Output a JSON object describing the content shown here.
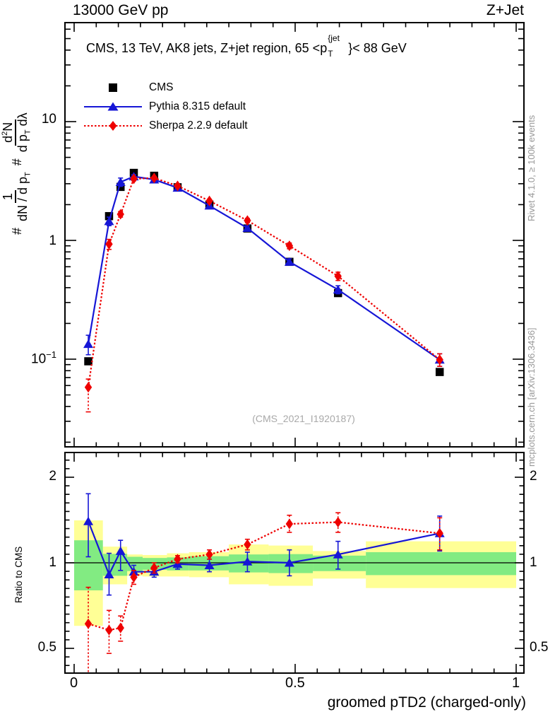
{
  "header": {
    "left": "13000 GeV pp",
    "right": "Z+Jet"
  },
  "panel_title": {
    "pre": "CMS, 13 TeV, AK8 jets, Z+jet region, 65 <p",
    "sup": "{jet",
    "sub": "T",
    "post": "}< 88 GeV"
  },
  "watermark": "(CMS_2021_I1920187)",
  "side_notes": {
    "top": "Rivet 4.1.0, ≥ 100k events",
    "bottom": "mcplots.cern.ch [arXiv:1306.3436]",
    "color": "#999999"
  },
  "ylabel_main": {
    "hash1": "#",
    "f1_num": "1",
    "f1_den": "dN / d p",
    "f1_den_sub": "T",
    "hash2": "#",
    "f2_num_a": "d",
    "f2_num_sup": "2",
    "f2_num_b": "N",
    "f2_den_a": "d p",
    "f2_den_sub": "T",
    "f2_den_b": " dλ"
  },
  "axes": {
    "x": {
      "title": "groomed pTD2 (charged-only)",
      "tick_labels": [
        "0",
        "0.5",
        "1"
      ]
    },
    "y_main": {
      "tick_top": "10",
      "tick_mid": "1",
      "tick_bot_base": "10",
      "tick_bot_sup": "−1"
    },
    "y_ratio": {
      "label": "Ratio to CMS",
      "tick_labels": [
        "2",
        "1",
        "0.5"
      ]
    }
  },
  "chart_data": {
    "type": "line",
    "title": "CMS, 13 TeV, AK8 jets, Z+jet region, 65 < pT{jet} < 88 GeV",
    "xlabel": "groomed pTD2 (charged-only)",
    "ylabel": "# 1/(dN/dpT) # d2N/(dpT dλ)",
    "x_range": [
      -0.021,
      1.018
    ],
    "y_scale": "log",
    "y_range_main": [
      0.018,
      68
    ],
    "x": [
      0.032,
      0.079,
      0.105,
      0.135,
      0.181,
      0.234,
      0.306,
      0.392,
      0.487,
      0.597,
      0.827
    ],
    "series": [
      {
        "name": "CMS",
        "color": "#000000",
        "marker": "square",
        "line": "none",
        "values": [
          0.096,
          1.6,
          2.82,
          3.7,
          3.5,
          2.8,
          2.0,
          1.26,
          0.66,
          0.36,
          0.078
        ],
        "err_lo": [
          0.004,
          0.04,
          0.06,
          0.07,
          0.06,
          0.05,
          0.04,
          0.03,
          0.02,
          0.012,
          0.004
        ],
        "err_hi": [
          0.004,
          0.04,
          0.06,
          0.07,
          0.06,
          0.05,
          0.04,
          0.03,
          0.02,
          0.012,
          0.004
        ]
      },
      {
        "name": "Pythia 8.315 default",
        "color": "#1616d6",
        "marker": "triangle",
        "line": "solid",
        "values": [
          0.134,
          1.45,
          3.1,
          3.45,
          3.25,
          2.77,
          1.96,
          1.27,
          0.66,
          0.385,
          0.099
        ],
        "err_lo": [
          0.025,
          0.12,
          0.25,
          0.12,
          0.1,
          0.08,
          0.07,
          0.06,
          0.04,
          0.03,
          0.012
        ],
        "err_hi": [
          0.025,
          0.12,
          0.25,
          0.12,
          0.1,
          0.08,
          0.07,
          0.06,
          0.04,
          0.03,
          0.012
        ]
      },
      {
        "name": "Sherpa 2.2.9 default",
        "color": "#ee0000",
        "marker": "diamond",
        "line": "dotted",
        "values": [
          0.058,
          0.93,
          1.66,
          3.3,
          3.35,
          2.88,
          2.15,
          1.47,
          0.9,
          0.5,
          0.099
        ],
        "err_lo": [
          0.022,
          0.09,
          0.09,
          0.12,
          0.1,
          0.08,
          0.07,
          0.06,
          0.05,
          0.04,
          0.012
        ],
        "err_hi": [
          0.01,
          0.09,
          0.09,
          0.12,
          0.1,
          0.08,
          0.07,
          0.06,
          0.05,
          0.04,
          0.012
        ]
      }
    ],
    "ratio": {
      "ylabel": "Ratio to CMS",
      "y_range": [
        0.41,
        2.44
      ],
      "reference_line": 1,
      "series": [
        {
          "name": "Pythia 8.315 default",
          "color": "#1616d6",
          "marker": "triangle",
          "line": "solid",
          "values": [
            1.4,
            0.91,
            1.1,
            0.93,
            0.93,
            0.99,
            0.98,
            1.01,
            1.0,
            1.07,
            1.27
          ],
          "err_lo": [
            0.35,
            0.14,
            0.16,
            0.05,
            0.04,
            0.04,
            0.05,
            0.08,
            0.1,
            0.12,
            0.17
          ],
          "err_hi": [
            0.35,
            0.17,
            0.1,
            0.05,
            0.04,
            0.04,
            0.05,
            0.08,
            0.11,
            0.12,
            0.19
          ]
        },
        {
          "name": "Sherpa 2.2.9 default",
          "color": "#ee0000",
          "marker": "diamond",
          "line": "dotted",
          "values": [
            0.61,
            0.58,
            0.59,
            0.89,
            0.96,
            1.03,
            1.07,
            1.16,
            1.37,
            1.39,
            1.27
          ],
          "err_lo": [
            0.45,
            0.1,
            0.06,
            0.05,
            0.04,
            0.03,
            0.04,
            0.05,
            0.09,
            0.11,
            0.16
          ],
          "err_hi": [
            0.21,
            0.1,
            0.06,
            0.05,
            0.04,
            0.03,
            0.04,
            0.05,
            0.1,
            0.11,
            0.17
          ]
        }
      ],
      "bands": {
        "edges": [
          0.0,
          0.065,
          0.095,
          0.12,
          0.155,
          0.21,
          0.26,
          0.35,
          0.44,
          0.54,
          0.66,
          1.0
        ],
        "yellow_lo": [
          0.6,
          0.84,
          0.84,
          0.9,
          0.895,
          0.895,
          0.89,
          0.84,
          0.83,
          0.88,
          0.815
        ],
        "yellow_hi": [
          1.41,
          1.14,
          1.14,
          1.07,
          1.065,
          1.08,
          1.09,
          1.16,
          1.15,
          1.1,
          1.19
        ],
        "green_lo": [
          0.8,
          0.9,
          0.9,
          0.935,
          0.945,
          0.94,
          0.94,
          0.925,
          0.92,
          0.935,
          0.905
        ],
        "green_hi": [
          1.2,
          1.075,
          1.075,
          1.05,
          1.04,
          1.045,
          1.055,
          1.07,
          1.073,
          1.06,
          1.09
        ],
        "yellow_color": "#ffff96",
        "green_color": "#82eb82"
      }
    }
  }
}
